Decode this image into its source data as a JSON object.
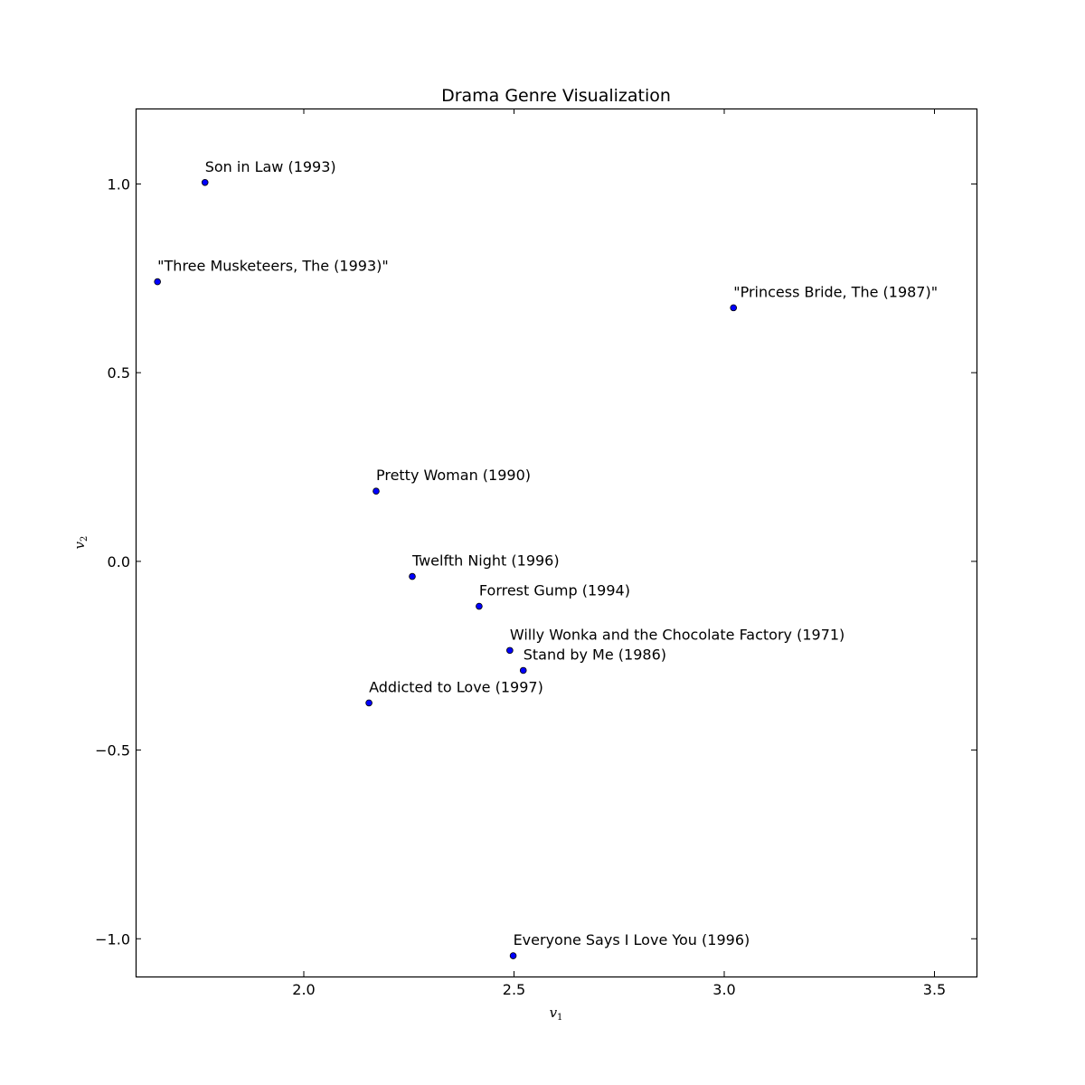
{
  "chart_data": {
    "type": "scatter",
    "title": "Drama Genre Visualization",
    "xlabel": {
      "base": "v",
      "sub": "1"
    },
    "ylabel": {
      "base": "v",
      "sub": "2"
    },
    "xlim": [
      1.6,
      3.6
    ],
    "ylim": [
      -1.1,
      1.2
    ],
    "xticks": [
      2.0,
      2.5,
      3.0,
      3.5
    ],
    "xtick_labels": [
      "2.0",
      "2.5",
      "3.0",
      "3.5"
    ],
    "yticks": [
      -1.0,
      -0.5,
      0.0,
      0.5,
      1.0
    ],
    "ytick_labels": [
      "−1.0",
      "−0.5",
      "0.0",
      "0.5",
      "1.0"
    ],
    "grid": false,
    "marker_color": "#0000ff",
    "points": [
      {
        "label": "Son in Law (1993)",
        "x": 1.765,
        "y": 1.004
      },
      {
        "label": "\"Three Musketeers, The (1993)\"",
        "x": 1.652,
        "y": 0.741
      },
      {
        "label": "\"Princess Bride, The (1987)\"",
        "x": 3.022,
        "y": 0.672
      },
      {
        "label": "Pretty Woman (1990)",
        "x": 2.172,
        "y": 0.186
      },
      {
        "label": "Twelfth Night (1996)",
        "x": 2.258,
        "y": -0.04
      },
      {
        "label": "Forrest Gump (1994)",
        "x": 2.417,
        "y": -0.119
      },
      {
        "label": "Willy Wonka and the Chocolate Factory (1971)",
        "x": 2.49,
        "y": -0.236
      },
      {
        "label": "Stand by Me (1986)",
        "x": 2.522,
        "y": -0.289
      },
      {
        "label": "Addicted to Love (1997)",
        "x": 2.155,
        "y": -0.375
      },
      {
        "label": "Everyone Says I Love You (1996)",
        "x": 2.498,
        "y": -1.045
      }
    ]
  }
}
